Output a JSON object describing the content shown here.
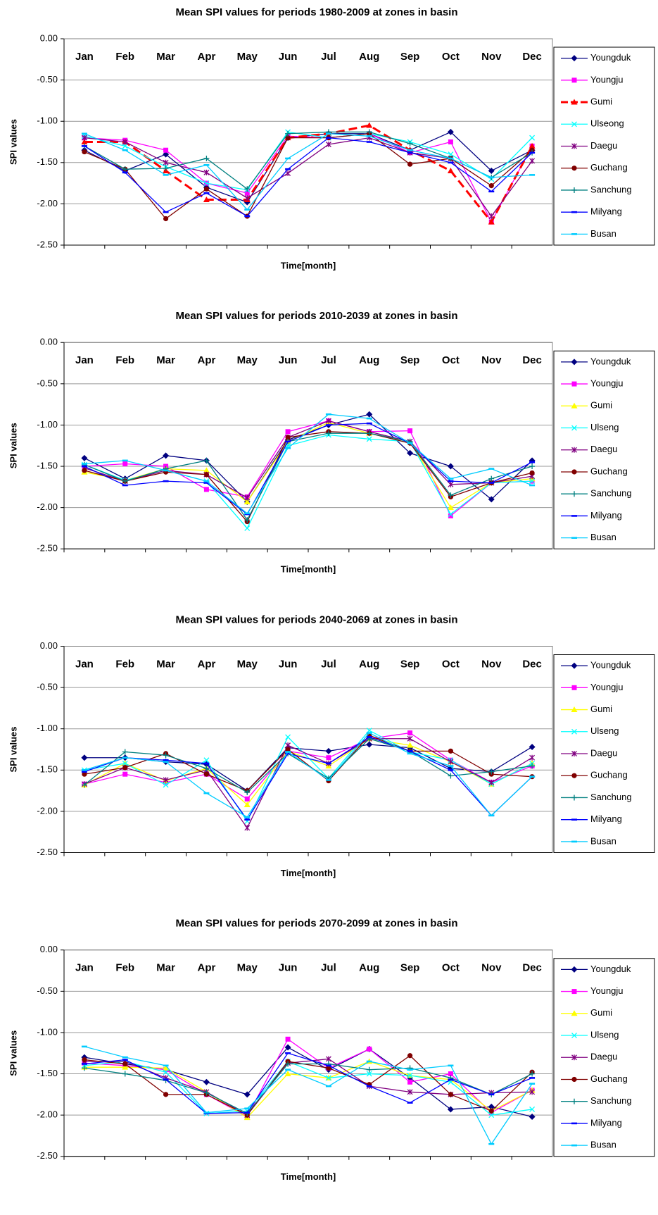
{
  "chart_data": [
    {
      "type": "line",
      "title": "Mean SPI values for periods 1980-2009 at zones in basin",
      "xlabel": "Time[month]",
      "ylabel": "SPI values",
      "categories": [
        "Jan",
        "Feb",
        "Mar",
        "Apr",
        "May",
        "Jun",
        "Jul",
        "Aug",
        "Sep",
        "Oct",
        "Nov",
        "Dec"
      ],
      "ylim": [
        -2.5,
        0
      ],
      "yticks": [
        {
          "value": 0,
          "label": "0.00"
        },
        {
          "value": -0.5,
          "label": "-0.50"
        },
        {
          "value": -1,
          "label": "-1.00"
        },
        {
          "value": -1.5,
          "label": "-1.50"
        },
        {
          "value": -2,
          "label": "-2.00"
        },
        {
          "value": -2.5,
          "label": "-2.50"
        }
      ],
      "grid": true,
      "series": [
        {
          "name": "Youngduk",
          "color": "#000080",
          "marker": "diamond",
          "values": [
            -1.35,
            -1.6,
            -1.4,
            -1.8,
            -1.98,
            -1.2,
            -1.15,
            -1.15,
            -1.35,
            -1.13,
            -1.6,
            -1.35
          ]
        },
        {
          "name": "Youngju",
          "color": "#ff00ff",
          "marker": "square",
          "values": [
            -1.2,
            -1.23,
            -1.35,
            -1.75,
            -1.87,
            -1.18,
            -1.2,
            -1.15,
            -1.38,
            -1.25,
            -2.22,
            -1.3
          ]
        },
        {
          "name": "Gumi",
          "color": "#ff0000",
          "marker": "triangle",
          "dashed": true,
          "values": [
            -1.25,
            -1.25,
            -1.6,
            -1.95,
            -1.95,
            -1.2,
            -1.15,
            -1.05,
            -1.35,
            -1.6,
            -2.22,
            -1.3
          ]
        },
        {
          "name": "Ulseong",
          "color": "#00ffff",
          "marker": "x",
          "values": [
            -1.18,
            -1.3,
            -1.55,
            -1.75,
            -1.83,
            -1.13,
            -1.2,
            -1.15,
            -1.25,
            -1.4,
            -1.7,
            -1.2
          ]
        },
        {
          "name": "Daegu",
          "color": "#800080",
          "marker": "star",
          "values": [
            -1.2,
            -1.25,
            -1.5,
            -1.62,
            -1.93,
            -1.63,
            -1.28,
            -1.2,
            -1.38,
            -1.45,
            -2.15,
            -1.48
          ]
        },
        {
          "name": "Guchang",
          "color": "#800000",
          "marker": "circle",
          "values": [
            -1.37,
            -1.58,
            -2.18,
            -1.82,
            -2.15,
            -1.2,
            -1.2,
            -1.15,
            -1.52,
            -1.45,
            -1.78,
            -1.35
          ]
        },
        {
          "name": "Sanchung",
          "color": "#008080",
          "marker": "plus",
          "values": [
            -1.3,
            -1.58,
            -1.57,
            -1.45,
            -1.82,
            -1.15,
            -1.13,
            -1.13,
            -1.27,
            -1.45,
            -1.68,
            -1.38
          ]
        },
        {
          "name": "Milyang",
          "color": "#0000ff",
          "marker": "dash",
          "values": [
            -1.3,
            -1.62,
            -2.1,
            -1.87,
            -2.15,
            -1.58,
            -1.2,
            -1.25,
            -1.38,
            -1.5,
            -1.85,
            -1.38
          ]
        },
        {
          "name": "Busan",
          "color": "#00ccff",
          "marker": "dash",
          "values": [
            -1.15,
            -1.35,
            -1.65,
            -1.53,
            -2.07,
            -1.45,
            -1.15,
            -1.18,
            -1.35,
            -1.45,
            -1.68,
            -1.65
          ]
        }
      ]
    },
    {
      "type": "line",
      "title": "Mean SPI values for periods 2010-2039 at zones in basin",
      "xlabel": "Time[month]",
      "ylabel": "SPI values",
      "categories": [
        "Jan",
        "Feb",
        "Mar",
        "Apr",
        "May",
        "Jun",
        "Jul",
        "Aug",
        "Sep",
        "Oct",
        "Nov",
        "Dec"
      ],
      "ylim": [
        -2.5,
        0
      ],
      "yticks": [
        {
          "value": 0,
          "label": "0.00"
        },
        {
          "value": -0.5,
          "label": "-0.50"
        },
        {
          "value": -1,
          "label": "-1.00"
        },
        {
          "value": -1.5,
          "label": "-1.50"
        },
        {
          "value": -2,
          "label": "-2.00"
        },
        {
          "value": -2.5,
          "label": "-2.50"
        }
      ],
      "grid": true,
      "series": [
        {
          "name": "Youngduk",
          "color": "#000080",
          "marker": "diamond",
          "values": [
            -1.4,
            -1.65,
            -1.37,
            -1.43,
            -1.93,
            -1.18,
            -1.0,
            -0.87,
            -1.34,
            -1.5,
            -1.9,
            -1.43
          ]
        },
        {
          "name": "Youngju",
          "color": "#ff00ff",
          "marker": "square",
          "values": [
            -1.5,
            -1.47,
            -1.5,
            -1.78,
            -1.87,
            -1.08,
            -0.95,
            -1.08,
            -1.07,
            -2.1,
            -1.7,
            -1.68
          ]
        },
        {
          "name": "Gumi",
          "color": "#ffff00",
          "marker": "triangle",
          "values": [
            -1.57,
            -1.67,
            -1.53,
            -1.55,
            -1.93,
            -1.2,
            -0.97,
            -1.1,
            -1.2,
            -2.0,
            -1.7,
            -1.65
          ]
        },
        {
          "name": "Ulseng",
          "color": "#00ffff",
          "marker": "x",
          "values": [
            -1.48,
            -1.67,
            -1.55,
            -1.68,
            -2.25,
            -1.25,
            -1.12,
            -1.17,
            -1.2,
            -2.08,
            -1.7,
            -1.68
          ]
        },
        {
          "name": "Daegu",
          "color": "#800080",
          "marker": "star",
          "values": [
            -1.52,
            -1.68,
            -1.55,
            -1.6,
            -1.88,
            -1.15,
            -0.95,
            -1.08,
            -1.2,
            -1.72,
            -1.7,
            -1.62
          ]
        },
        {
          "name": "Guchang",
          "color": "#800000",
          "marker": "circle",
          "values": [
            -1.55,
            -1.68,
            -1.57,
            -1.6,
            -2.17,
            -1.15,
            -1.08,
            -1.1,
            -1.22,
            -1.87,
            -1.7,
            -1.58
          ]
        },
        {
          "name": "Sanchung",
          "color": "#008080",
          "marker": "plus",
          "values": [
            -1.48,
            -1.68,
            -1.53,
            -1.43,
            -2.15,
            -1.2,
            -1.1,
            -1.1,
            -1.2,
            -1.85,
            -1.65,
            -1.5
          ]
        },
        {
          "name": "Milyang",
          "color": "#0000ff",
          "marker": "dash",
          "values": [
            -1.5,
            -1.73,
            -1.68,
            -1.7,
            -2.08,
            -1.2,
            -1.0,
            -0.98,
            -1.22,
            -1.68,
            -1.7,
            -1.45
          ]
        },
        {
          "name": "Busan",
          "color": "#00ccff",
          "marker": "dash",
          "values": [
            -1.47,
            -1.43,
            -1.55,
            -1.68,
            -2.07,
            -1.28,
            -0.87,
            -0.92,
            -1.22,
            -1.65,
            -1.53,
            -1.73
          ]
        }
      ]
    },
    {
      "type": "line",
      "title": "Mean SPI values for periods 2040-2069 at zones in basin",
      "xlabel": "Time[month]",
      "ylabel": "SPI values",
      "categories": [
        "Jan",
        "Feb",
        "Mar",
        "Apr",
        "May",
        "Jun",
        "Jul",
        "Aug",
        "Sep",
        "Oct",
        "Nov",
        "Dec"
      ],
      "ylim": [
        -2.5,
        0
      ],
      "yticks": [
        {
          "value": 0,
          "label": "0.00"
        },
        {
          "value": -0.5,
          "label": "-0.50"
        },
        {
          "value": -1,
          "label": "-1.00"
        },
        {
          "value": -1.5,
          "label": "-1.50"
        },
        {
          "value": -2,
          "label": "-2.00"
        },
        {
          "value": -2.5,
          "label": "-2.50"
        }
      ],
      "grid": true,
      "series": [
        {
          "name": "Youngduk",
          "color": "#000080",
          "marker": "diamond",
          "values": [
            -1.35,
            -1.35,
            -1.4,
            -1.43,
            -1.75,
            -1.23,
            -1.27,
            -1.19,
            -1.23,
            -1.48,
            -1.52,
            -1.22
          ]
        },
        {
          "name": "Youngju",
          "color": "#ff00ff",
          "marker": "square",
          "values": [
            -1.67,
            -1.55,
            -1.65,
            -1.55,
            -1.85,
            -1.27,
            -1.35,
            -1.12,
            -1.05,
            -1.38,
            -1.65,
            -1.45
          ]
        },
        {
          "name": "Gumi",
          "color": "#ffff00",
          "marker": "triangle",
          "values": [
            -1.68,
            -1.42,
            -1.63,
            -1.48,
            -1.92,
            -1.27,
            -1.45,
            -1.12,
            -1.2,
            -1.4,
            -1.67,
            -1.42
          ]
        },
        {
          "name": "Ulseng",
          "color": "#00ffff",
          "marker": "x",
          "values": [
            -1.5,
            -1.42,
            -1.68,
            -1.38,
            -2.12,
            -1.1,
            -1.6,
            -1.02,
            -1.28,
            -1.38,
            -1.67,
            -1.42
          ]
        },
        {
          "name": "Daegu",
          "color": "#800080",
          "marker": "star",
          "values": [
            -1.67,
            -1.47,
            -1.62,
            -1.5,
            -2.2,
            -1.2,
            -1.42,
            -1.12,
            -1.12,
            -1.4,
            -1.65,
            -1.35
          ]
        },
        {
          "name": "Guchang",
          "color": "#800000",
          "marker": "circle",
          "values": [
            -1.55,
            -1.47,
            -1.3,
            -1.55,
            -1.75,
            -1.25,
            -1.63,
            -1.08,
            -1.27,
            -1.27,
            -1.55,
            -1.58
          ]
        },
        {
          "name": "Sanchung",
          "color": "#008080",
          "marker": "plus",
          "values": [
            -1.68,
            -1.28,
            -1.32,
            -1.48,
            -1.77,
            -1.3,
            -1.6,
            -1.12,
            -1.27,
            -1.57,
            -1.52,
            -1.45
          ]
        },
        {
          "name": "Milyang",
          "color": "#0000ff",
          "marker": "dash",
          "values": [
            -1.52,
            -1.35,
            -1.38,
            -1.42,
            -2.1,
            -1.3,
            -1.42,
            -1.1,
            -1.27,
            -1.5,
            -2.05,
            -1.58
          ]
        },
        {
          "name": "Busan",
          "color": "#00ccff",
          "marker": "dash",
          "values": [
            -1.5,
            -1.35,
            -1.4,
            -1.78,
            -2.07,
            -1.28,
            -1.62,
            -1.05,
            -1.3,
            -1.45,
            -2.05,
            -1.58
          ]
        }
      ]
    },
    {
      "type": "line",
      "title": "Mean SPI values for periods 2070-2099 at zones in basin",
      "xlabel": "Time[month]",
      "ylabel": "SPI values",
      "categories": [
        "Jan",
        "Feb",
        "Mar",
        "Apr",
        "May",
        "Jun",
        "Jul",
        "Aug",
        "Sep",
        "Oct",
        "Nov",
        "Dec"
      ],
      "ylim": [
        -2.5,
        0
      ],
      "yticks": [
        {
          "value": 0,
          "label": "0.00"
        },
        {
          "value": -0.5,
          "label": "-0.50"
        },
        {
          "value": -1,
          "label": "-1.00"
        },
        {
          "value": -1.5,
          "label": "-1.50"
        },
        {
          "value": -2,
          "label": "-2.00"
        },
        {
          "value": -2.5,
          "label": "-2.50"
        }
      ],
      "grid": true,
      "series": [
        {
          "name": "Youngduk",
          "color": "#000080",
          "marker": "diamond",
          "values": [
            -1.3,
            -1.38,
            -1.45,
            -1.6,
            -1.75,
            -1.18,
            -1.45,
            -1.2,
            -1.55,
            -1.93,
            -1.9,
            -2.02
          ]
        },
        {
          "name": "Youngju",
          "color": "#ff00ff",
          "marker": "square",
          "values": [
            -1.37,
            -1.4,
            -1.45,
            -1.75,
            -2.02,
            -1.08,
            -1.43,
            -1.2,
            -1.6,
            -1.5,
            -1.97,
            -1.7
          ]
        },
        {
          "name": "Gumi",
          "color": "#ffff00",
          "marker": "triangle",
          "values": [
            -1.42,
            -1.42,
            -1.43,
            -1.72,
            -2.03,
            -1.5,
            -1.55,
            -1.35,
            -1.52,
            -1.57,
            -1.95,
            -1.7
          ]
        },
        {
          "name": "Ulseng",
          "color": "#00ffff",
          "marker": "x",
          "values": [
            -1.4,
            -1.35,
            -1.48,
            -1.98,
            -1.95,
            -1.35,
            -1.55,
            -1.5,
            -1.52,
            -1.6,
            -2.0,
            -1.93
          ]
        },
        {
          "name": "Daegu",
          "color": "#800080",
          "marker": "star",
          "values": [
            -1.35,
            -1.35,
            -1.55,
            -1.72,
            -2.0,
            -1.37,
            -1.32,
            -1.65,
            -1.72,
            -1.75,
            -1.73,
            -1.72
          ]
        },
        {
          "name": "Guchang",
          "color": "#800000",
          "marker": "circle",
          "values": [
            -1.33,
            -1.38,
            -1.75,
            -1.75,
            -2.0,
            -1.35,
            -1.43,
            -1.63,
            -1.28,
            -1.75,
            -1.95,
            -1.48
          ]
        },
        {
          "name": "Sanchung",
          "color": "#008080",
          "marker": "plus",
          "values": [
            -1.43,
            -1.5,
            -1.58,
            -1.73,
            -1.98,
            -1.38,
            -1.38,
            -1.45,
            -1.43,
            -1.55,
            -1.75,
            -1.5
          ]
        },
        {
          "name": "Milyang",
          "color": "#0000ff",
          "marker": "dash",
          "values": [
            -1.38,
            -1.33,
            -1.57,
            -1.98,
            -1.97,
            -1.25,
            -1.4,
            -1.65,
            -1.85,
            -1.57,
            -1.75,
            -1.55
          ]
        },
        {
          "name": "Busan",
          "color": "#00ccff",
          "marker": "dash",
          "values": [
            -1.17,
            -1.3,
            -1.4,
            -1.97,
            -1.92,
            -1.45,
            -1.65,
            -1.35,
            -1.45,
            -1.4,
            -2.35,
            -1.62
          ]
        }
      ]
    }
  ]
}
